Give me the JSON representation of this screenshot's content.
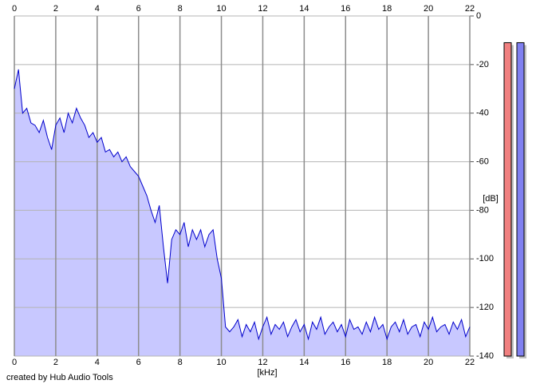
{
  "chart_data": {
    "type": "line",
    "x_label": "[kHz]",
    "y_label": "[dB]",
    "footer": "created by Hub Audio Tools",
    "x": [
      0,
      0.2,
      0.4,
      0.6,
      0.8,
      1,
      1.2,
      1.4,
      1.6,
      1.8,
      2,
      2.2,
      2.4,
      2.6,
      2.8,
      3,
      3.2,
      3.4,
      3.6,
      3.8,
      4,
      4.2,
      4.4,
      4.6,
      4.8,
      5,
      5.2,
      5.4,
      5.6,
      5.8,
      6,
      6.2,
      6.4,
      6.6,
      6.8,
      7,
      7.2,
      7.4,
      7.6,
      7.8,
      8,
      8.2,
      8.4,
      8.6,
      8.8,
      9,
      9.2,
      9.4,
      9.6,
      9.8,
      10,
      10.2,
      10.4,
      10.6,
      10.8,
      11,
      11.2,
      11.4,
      11.6,
      11.8,
      12,
      12.2,
      12.4,
      12.6,
      12.8,
      13,
      13.2,
      13.4,
      13.6,
      13.8,
      14,
      14.2,
      14.4,
      14.6,
      14.8,
      15,
      15.2,
      15.4,
      15.6,
      15.8,
      16,
      16.2,
      16.4,
      16.6,
      16.8,
      17,
      17.2,
      17.4,
      17.6,
      17.8,
      18,
      18.2,
      18.4,
      18.6,
      18.8,
      19,
      19.2,
      19.4,
      19.6,
      19.8,
      20,
      20.2,
      20.4,
      20.6,
      20.8,
      21,
      21.2,
      21.4,
      21.6,
      21.8,
      22
    ],
    "series": [
      {
        "color": "#0000cc",
        "fill": "#c8c8ff",
        "values": [
          -30,
          -22,
          -40,
          -38,
          -44,
          -45,
          -48,
          -43,
          -50,
          -55,
          -45,
          -42,
          -48,
          -40,
          -44,
          -38,
          -42,
          -45,
          -50,
          -48,
          -52,
          -50,
          -56,
          -55,
          -58,
          -56,
          -60,
          -58,
          -62,
          -64,
          -66,
          -70,
          -74,
          -80,
          -85,
          -78,
          -95,
          -110,
          -92,
          -88,
          -90,
          -85,
          -95,
          -88,
          -92,
          -88,
          -95,
          -90,
          -88,
          -100,
          -108,
          -128,
          -130,
          -128,
          -125,
          -132,
          -127,
          -130,
          -126,
          -133,
          -128,
          -124,
          -131,
          -127,
          -129,
          -126,
          -132,
          -128,
          -125,
          -130,
          -127,
          -133,
          -126,
          -129,
          -124,
          -131,
          -128,
          -126,
          -130,
          -127,
          -132,
          -125,
          -129,
          -128,
          -131,
          -126,
          -130,
          -124,
          -129,
          -127,
          -133,
          -128,
          -126,
          -130,
          -125,
          -131,
          -128,
          -127,
          -132,
          -126,
          -129,
          -124,
          -130,
          -128,
          -127,
          -131,
          -126,
          -129,
          -125,
          -132,
          -128
        ]
      }
    ],
    "xlim": [
      0,
      22
    ],
    "xticks": [
      0,
      2,
      4,
      6,
      8,
      10,
      12,
      14,
      16,
      18,
      20,
      22
    ],
    "ylim": [
      -140,
      0
    ],
    "yticks": [
      0,
      -20,
      -40,
      -60,
      -80,
      -100,
      -120,
      -140
    ],
    "grid": true,
    "meters": [
      {
        "color": "#f08080",
        "value": -11
      },
      {
        "color": "#8080f0",
        "value": -11
      }
    ]
  }
}
